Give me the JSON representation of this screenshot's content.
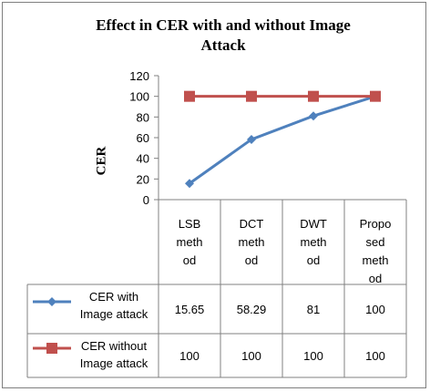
{
  "chart_data": {
    "type": "line",
    "title_line1": "Effect in CER with and without Image",
    "title_line2": "Attack",
    "ylabel": "CER",
    "ylim": [
      0,
      120
    ],
    "yticks": [
      "0",
      "20",
      "40",
      "60",
      "80",
      "100",
      "120"
    ],
    "categories": [
      [
        "LSB",
        "meth",
        "od"
      ],
      [
        "DCT",
        "meth",
        "od"
      ],
      [
        "DWT",
        "meth",
        "od"
      ],
      [
        "Propo",
        "sed",
        "meth",
        "od"
      ]
    ],
    "series": [
      {
        "name_lines": [
          "CER with",
          "Image attack"
        ],
        "values": [
          15.65,
          58.29,
          81,
          100
        ],
        "labels": [
          "15.65",
          "58.29",
          "81",
          "100"
        ],
        "color": "#4f81bd",
        "marker": "diamond"
      },
      {
        "name_lines": [
          "CER without",
          "Image attack"
        ],
        "values": [
          100,
          100,
          100,
          100
        ],
        "labels": [
          "100",
          "100",
          "100",
          "100"
        ],
        "color": "#c0504d",
        "marker": "square"
      }
    ],
    "grid": false,
    "legend": "data-table"
  }
}
